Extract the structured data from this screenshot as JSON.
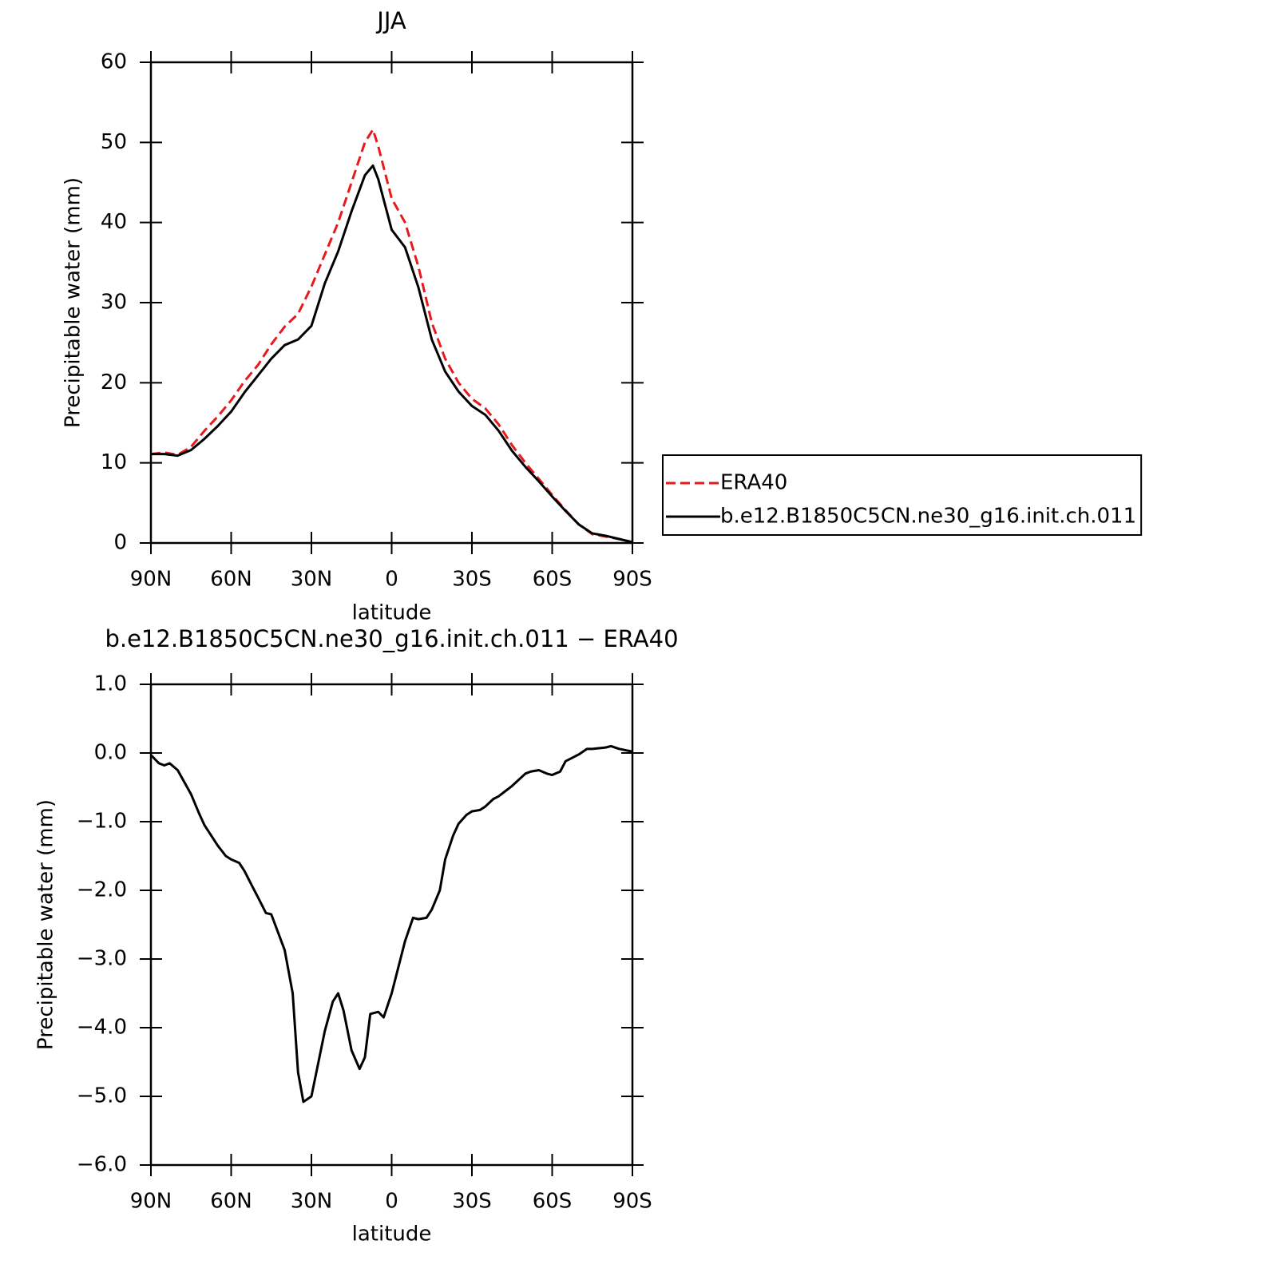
{
  "chart_data": [
    {
      "type": "line",
      "title": "JJA",
      "xlabel": "latitude",
      "ylabel": "Precipitable water (mm)",
      "x": [
        90,
        85,
        80,
        75,
        70,
        65,
        60,
        55,
        50,
        45,
        40,
        35,
        30,
        25,
        20,
        15,
        10,
        7,
        5,
        0,
        -5,
        -10,
        -15,
        -20,
        -25,
        -30,
        -35,
        -40,
        -45,
        -50,
        -55,
        -60,
        -65,
        -70,
        -75,
        -80,
        -85,
        -90
      ],
      "series": [
        {
          "name": "ERA40",
          "color": "#e8191d",
          "line_style": "dashed",
          "values": [
            11.1,
            11.3,
            11.0,
            12.0,
            14.0,
            15.8,
            17.8,
            20.2,
            22.2,
            24.8,
            27.0,
            28.6,
            32.0,
            36.0,
            40.0,
            45.0,
            50.0,
            51.6,
            49.5,
            43.0,
            40.0,
            34.5,
            27.5,
            23.0,
            20.0,
            18.0,
            16.8,
            14.8,
            12.2,
            10.0,
            8.0,
            6.0,
            4.1,
            2.3,
            1.1,
            0.8,
            0.5,
            0.1
          ]
        },
        {
          "name": "b.e12.B1850C5CN.ne30_g16.init.ch.011",
          "color": "#000000",
          "line_style": "solid",
          "values": [
            11.1,
            11.1,
            10.9,
            11.6,
            13.0,
            14.6,
            16.4,
            18.8,
            20.9,
            23.0,
            24.7,
            25.4,
            27.1,
            32.4,
            36.4,
            41.4,
            45.9,
            47.1,
            45.4,
            39.1,
            36.9,
            31.9,
            25.4,
            21.4,
            18.9,
            17.1,
            16.0,
            14.0,
            11.5,
            9.5,
            7.7,
            5.8,
            4.0,
            2.3,
            1.2,
            0.9,
            0.5,
            0.1
          ]
        }
      ],
      "xlim": [
        90,
        -90
      ],
      "xticks": [
        {
          "value": 90,
          "label": "90N"
        },
        {
          "value": 60,
          "label": "60N"
        },
        {
          "value": 30,
          "label": "30N"
        },
        0,
        {
          "value": -30,
          "label": "30S"
        },
        {
          "value": -60,
          "label": "60S"
        },
        {
          "value": -90,
          "label": "90S"
        }
      ],
      "ylim": [
        0,
        60
      ],
      "yticks": [
        0,
        10,
        20,
        30,
        40,
        50,
        60
      ],
      "grid": false,
      "legend": "right"
    },
    {
      "type": "line",
      "title": "b.e12.B1850C5CN.ne30_g16.init.ch.011 − ERA40",
      "xlabel": "latitude",
      "ylabel": "Precipitable water (mm)",
      "x": [
        90,
        87,
        85,
        83,
        80,
        75,
        72,
        70,
        65,
        62,
        60,
        57,
        55,
        52,
        50,
        47,
        45,
        40,
        37,
        35,
        33,
        30,
        25,
        22,
        20,
        18,
        15,
        12,
        10,
        8,
        5,
        3,
        0,
        -5,
        -8,
        -10,
        -13,
        -15,
        -18,
        -20,
        -23,
        -25,
        -28,
        -30,
        -33,
        -35,
        -38,
        -40,
        -45,
        -50,
        -52,
        -55,
        -58,
        -60,
        -63,
        -65,
        -68,
        -70,
        -73,
        -75,
        -80,
        -82,
        -85,
        -90
      ],
      "values": [
        -0.03,
        -0.15,
        -0.18,
        -0.15,
        -0.25,
        -0.6,
        -0.88,
        -1.05,
        -1.35,
        -1.5,
        -1.55,
        -1.6,
        -1.72,
        -1.95,
        -2.1,
        -2.33,
        -2.35,
        -2.87,
        -3.5,
        -4.65,
        -5.08,
        -5.0,
        -4.05,
        -3.62,
        -3.5,
        -3.75,
        -4.33,
        -4.6,
        -4.43,
        -3.8,
        -3.77,
        -3.85,
        -3.5,
        -2.74,
        -2.4,
        -2.42,
        -2.4,
        -2.28,
        -2.0,
        -1.55,
        -1.2,
        -1.03,
        -0.9,
        -0.85,
        -0.83,
        -0.78,
        -0.67,
        -0.63,
        -0.48,
        -0.3,
        -0.27,
        -0.25,
        -0.3,
        -0.32,
        -0.27,
        -0.12,
        -0.06,
        -0.02,
        0.06,
        0.06,
        0.08,
        0.1,
        0.06,
        0.02
      ],
      "color": "#000000",
      "line_style": "solid",
      "xlim": [
        90,
        -90
      ],
      "xticks": [
        {
          "value": 90,
          "label": "90N"
        },
        {
          "value": 60,
          "label": "60N"
        },
        {
          "value": 30,
          "label": "30N"
        },
        0,
        {
          "value": -30,
          "label": "30S"
        },
        {
          "value": -60,
          "label": "60S"
        },
        {
          "value": -90,
          "label": "90S"
        }
      ],
      "ylim": [
        -6,
        1
      ],
      "yticks": [
        {
          "value": 1,
          "label": "1.0"
        },
        {
          "value": 0,
          "label": "0.0"
        },
        {
          "value": -1,
          "label": "−1.0"
        },
        {
          "value": -2,
          "label": "−2.0"
        },
        {
          "value": -3,
          "label": "−3.0"
        },
        {
          "value": -4,
          "label": "−4.0"
        },
        {
          "value": -5,
          "label": "−5.0"
        },
        {
          "value": -6,
          "label": "−6.0"
        }
      ],
      "grid": false
    }
  ]
}
